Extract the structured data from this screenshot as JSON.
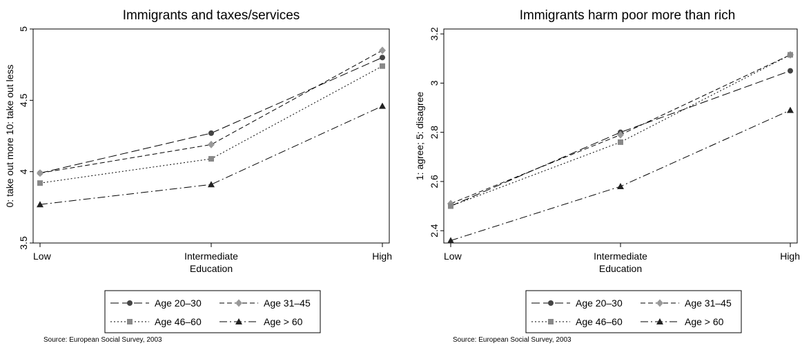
{
  "source_note": "Source: European Social Survey, 2003",
  "chart_data": [
    {
      "type": "line",
      "title": "Immigrants and taxes/services",
      "xlabel": "Education",
      "ylabel": "0: take out more 10: take out less",
      "categories": [
        "Low",
        "Intermediate",
        "High"
      ],
      "ylim": [
        3.5,
        5
      ],
      "yticks": [
        "3.5",
        "4",
        "4.5",
        "5"
      ],
      "grid": false,
      "legend_position": "bottom",
      "series": [
        {
          "name": "Age 20–30",
          "marker": "circle",
          "dash": "long-dash",
          "values": [
            3.99,
            4.27,
            4.8
          ]
        },
        {
          "name": "Age 31–45",
          "marker": "diamond",
          "dash": "short-dash",
          "values": [
            3.99,
            4.19,
            4.85
          ]
        },
        {
          "name": "Age 46–60",
          "marker": "square",
          "dash": "dot",
          "values": [
            3.92,
            4.09,
            4.74
          ]
        },
        {
          "name": "Age > 60",
          "marker": "triangle",
          "dash": "dash-dot",
          "values": [
            3.77,
            3.91,
            4.46
          ]
        }
      ]
    },
    {
      "type": "line",
      "title": "Immigrants harm poor more than rich",
      "xlabel": "Education",
      "ylabel": "1: agree; 5: disagree",
      "categories": [
        "Low",
        "Intermediate",
        "High"
      ],
      "ylim": [
        2.35,
        3.22
      ],
      "yticks": [
        "2.4",
        "2.6",
        "2.8",
        "3",
        "3.2"
      ],
      "grid": false,
      "legend_position": "bottom",
      "series": [
        {
          "name": "Age 20–30",
          "marker": "circle",
          "dash": "long-dash",
          "values": [
            2.5,
            2.8,
            3.05
          ]
        },
        {
          "name": "Age 31–45",
          "marker": "diamond",
          "dash": "short-dash",
          "values": [
            2.51,
            2.79,
            3.115
          ]
        },
        {
          "name": "Age 46–60",
          "marker": "square",
          "dash": "dot",
          "values": [
            2.5,
            2.76,
            3.115
          ]
        },
        {
          "name": "Age > 60",
          "marker": "triangle",
          "dash": "dash-dot",
          "values": [
            2.36,
            2.58,
            2.89
          ]
        }
      ]
    }
  ]
}
